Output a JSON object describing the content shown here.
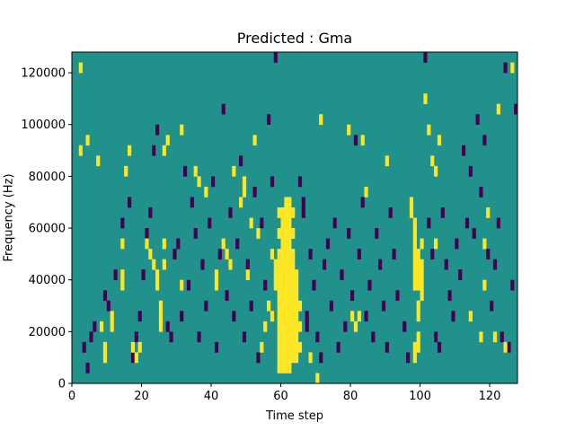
{
  "chart_data": {
    "type": "heatmap",
    "title": "Predicted : Gma",
    "xlabel": "Time step",
    "ylabel": "Frequency (Hz)",
    "xlim": [
      0,
      128
    ],
    "ylim": [
      0,
      128000
    ],
    "x_ticks": [
      "0",
      "20",
      "40",
      "60",
      "80",
      "100",
      "120"
    ],
    "y_ticks": [
      "0",
      "20000",
      "40000",
      "60000",
      "80000",
      "100000",
      "120000"
    ],
    "grid": false,
    "legend": "none",
    "colors": {
      "background": "#21918c",
      "high": "#fde725",
      "low": "#440154"
    },
    "value_levels": [
      "low",
      "medium",
      "high"
    ],
    "cell_size": {
      "time_steps": 1,
      "frequency_hz": 4000
    },
    "high_cells": [
      [
        2,
        120000
      ],
      [
        2,
        88000
      ],
      [
        4,
        92000
      ],
      [
        7,
        84000
      ],
      [
        8,
        20000
      ],
      [
        9,
        12000
      ],
      [
        9,
        8000
      ],
      [
        11,
        24000
      ],
      [
        11,
        20000
      ],
      [
        14,
        40000
      ],
      [
        14,
        52000
      ],
      [
        14,
        36000
      ],
      [
        15,
        80000
      ],
      [
        16,
        88000
      ],
      [
        17,
        12000
      ],
      [
        18,
        8000
      ],
      [
        19,
        12000
      ],
      [
        21,
        52000
      ],
      [
        22,
        48000
      ],
      [
        23,
        44000
      ],
      [
        24,
        40000
      ],
      [
        24,
        36000
      ],
      [
        25,
        28000
      ],
      [
        25,
        24000
      ],
      [
        25,
        20000
      ],
      [
        26,
        44000
      ],
      [
        26,
        52000
      ],
      [
        26,
        88000
      ],
      [
        27,
        92000
      ],
      [
        31,
        96000
      ],
      [
        31,
        36000
      ],
      [
        35,
        80000
      ],
      [
        36,
        76000
      ],
      [
        38,
        72000
      ],
      [
        41,
        36000
      ],
      [
        41,
        40000
      ],
      [
        43,
        52000
      ],
      [
        44,
        48000
      ],
      [
        45,
        44000
      ],
      [
        46,
        80000
      ],
      [
        48,
        68000
      ],
      [
        49,
        76000
      ],
      [
        49,
        72000
      ],
      [
        50,
        40000
      ],
      [
        51,
        60000
      ],
      [
        52,
        92000
      ],
      [
        53,
        56000
      ],
      [
        54,
        12000
      ],
      [
        55,
        20000
      ],
      [
        56,
        28000
      ],
      [
        57,
        48000
      ],
      [
        57,
        24000
      ],
      [
        58,
        44000
      ],
      [
        58,
        40000
      ],
      [
        58,
        36000
      ],
      [
        59,
        64000
      ],
      [
        59,
        56000
      ],
      [
        59,
        48000
      ],
      [
        59,
        44000
      ],
      [
        59,
        40000
      ],
      [
        59,
        36000
      ],
      [
        59,
        32000
      ],
      [
        59,
        28000
      ],
      [
        59,
        24000
      ],
      [
        59,
        20000
      ],
      [
        59,
        16000
      ],
      [
        59,
        12000
      ],
      [
        59,
        8000
      ],
      [
        59,
        4000
      ],
      [
        60,
        64000
      ],
      [
        60,
        60000
      ],
      [
        60,
        56000
      ],
      [
        60,
        52000
      ],
      [
        60,
        48000
      ],
      [
        60,
        44000
      ],
      [
        60,
        40000
      ],
      [
        60,
        36000
      ],
      [
        60,
        32000
      ],
      [
        60,
        28000
      ],
      [
        60,
        24000
      ],
      [
        60,
        20000
      ],
      [
        60,
        16000
      ],
      [
        60,
        12000
      ],
      [
        60,
        8000
      ],
      [
        60,
        4000
      ],
      [
        61,
        68000
      ],
      [
        61,
        64000
      ],
      [
        61,
        60000
      ],
      [
        61,
        56000
      ],
      [
        61,
        52000
      ],
      [
        61,
        48000
      ],
      [
        61,
        44000
      ],
      [
        61,
        40000
      ],
      [
        61,
        36000
      ],
      [
        61,
        32000
      ],
      [
        61,
        28000
      ],
      [
        61,
        24000
      ],
      [
        61,
        20000
      ],
      [
        61,
        16000
      ],
      [
        61,
        12000
      ],
      [
        61,
        8000
      ],
      [
        61,
        4000
      ],
      [
        62,
        68000
      ],
      [
        62,
        64000
      ],
      [
        62,
        60000
      ],
      [
        62,
        56000
      ],
      [
        62,
        52000
      ],
      [
        62,
        48000
      ],
      [
        62,
        44000
      ],
      [
        62,
        40000
      ],
      [
        62,
        36000
      ],
      [
        62,
        32000
      ],
      [
        62,
        28000
      ],
      [
        62,
        24000
      ],
      [
        62,
        20000
      ],
      [
        62,
        16000
      ],
      [
        62,
        12000
      ],
      [
        62,
        8000
      ],
      [
        62,
        4000
      ],
      [
        63,
        64000
      ],
      [
        63,
        56000
      ],
      [
        63,
        48000
      ],
      [
        63,
        44000
      ],
      [
        63,
        40000
      ],
      [
        63,
        36000
      ],
      [
        63,
        32000
      ],
      [
        63,
        28000
      ],
      [
        63,
        24000
      ],
      [
        63,
        20000
      ],
      [
        63,
        16000
      ],
      [
        63,
        12000
      ],
      [
        63,
        8000
      ],
      [
        64,
        40000
      ],
      [
        64,
        36000
      ],
      [
        64,
        32000
      ],
      [
        64,
        28000
      ],
      [
        64,
        24000
      ],
      [
        64,
        20000
      ],
      [
        64,
        16000
      ],
      [
        64,
        12000
      ],
      [
        64,
        8000
      ],
      [
        65,
        28000
      ],
      [
        65,
        20000
      ],
      [
        65,
        12000
      ],
      [
        68,
        8000
      ],
      [
        70,
        0
      ],
      [
        71,
        100000
      ],
      [
        79,
        96000
      ],
      [
        80,
        24000
      ],
      [
        81,
        20000
      ],
      [
        82,
        24000
      ],
      [
        83,
        92000
      ],
      [
        84,
        72000
      ],
      [
        90,
        84000
      ],
      [
        97,
        68000
      ],
      [
        97,
        64000
      ],
      [
        98,
        60000
      ],
      [
        98,
        56000
      ],
      [
        98,
        52000
      ],
      [
        98,
        48000
      ],
      [
        98,
        44000
      ],
      [
        98,
        40000
      ],
      [
        98,
        36000
      ],
      [
        98,
        12000
      ],
      [
        98,
        8000
      ],
      [
        99,
        48000
      ],
      [
        99,
        44000
      ],
      [
        99,
        40000
      ],
      [
        99,
        36000
      ],
      [
        99,
        28000
      ],
      [
        99,
        24000
      ],
      [
        99,
        16000
      ],
      [
        99,
        12000
      ],
      [
        100,
        52000
      ],
      [
        100,
        44000
      ],
      [
        100,
        40000
      ],
      [
        100,
        36000
      ],
      [
        100,
        32000
      ],
      [
        101,
        108000
      ],
      [
        102,
        96000
      ],
      [
        103,
        84000
      ],
      [
        104,
        80000
      ],
      [
        104,
        52000
      ],
      [
        105,
        92000
      ],
      [
        114,
        24000
      ],
      [
        117,
        16000
      ],
      [
        118,
        36000
      ],
      [
        118,
        52000
      ],
      [
        119,
        64000
      ],
      [
        121,
        16000
      ],
      [
        122,
        104000
      ],
      [
        124,
        12000
      ],
      [
        126,
        120000
      ]
    ],
    "low_cells": [
      [
        3,
        12000
      ],
      [
        4,
        4000
      ],
      [
        5,
        16000
      ],
      [
        6,
        20000
      ],
      [
        9,
        32000
      ],
      [
        10,
        28000
      ],
      [
        12,
        40000
      ],
      [
        14,
        60000
      ],
      [
        16,
        68000
      ],
      [
        17,
        8000
      ],
      [
        18,
        16000
      ],
      [
        19,
        24000
      ],
      [
        20,
        40000
      ],
      [
        21,
        56000
      ],
      [
        22,
        64000
      ],
      [
        23,
        88000
      ],
      [
        24,
        96000
      ],
      [
        27,
        20000
      ],
      [
        28,
        16000
      ],
      [
        29,
        48000
      ],
      [
        30,
        52000
      ],
      [
        31,
        24000
      ],
      [
        32,
        80000
      ],
      [
        33,
        36000
      ],
      [
        34,
        68000
      ],
      [
        35,
        56000
      ],
      [
        36,
        16000
      ],
      [
        37,
        44000
      ],
      [
        38,
        28000
      ],
      [
        39,
        60000
      ],
      [
        40,
        76000
      ],
      [
        41,
        12000
      ],
      [
        42,
        48000
      ],
      [
        43,
        104000
      ],
      [
        44,
        32000
      ],
      [
        45,
        64000
      ],
      [
        46,
        24000
      ],
      [
        47,
        52000
      ],
      [
        48,
        84000
      ],
      [
        49,
        16000
      ],
      [
        50,
        44000
      ],
      [
        51,
        28000
      ],
      [
        52,
        72000
      ],
      [
        53,
        8000
      ],
      [
        54,
        60000
      ],
      [
        55,
        36000
      ],
      [
        56,
        100000
      ],
      [
        57,
        76000
      ],
      [
        58,
        124000
      ],
      [
        65,
        76000
      ],
      [
        66,
        68000
      ],
      [
        66,
        64000
      ],
      [
        67,
        24000
      ],
      [
        67,
        20000
      ],
      [
        68,
        48000
      ],
      [
        69,
        36000
      ],
      [
        70,
        16000
      ],
      [
        71,
        8000
      ],
      [
        72,
        44000
      ],
      [
        73,
        52000
      ],
      [
        74,
        28000
      ],
      [
        75,
        60000
      ],
      [
        76,
        12000
      ],
      [
        77,
        40000
      ],
      [
        78,
        20000
      ],
      [
        79,
        56000
      ],
      [
        80,
        32000
      ],
      [
        81,
        92000
      ],
      [
        82,
        48000
      ],
      [
        83,
        68000
      ],
      [
        84,
        24000
      ],
      [
        85,
        36000
      ],
      [
        86,
        16000
      ],
      [
        87,
        56000
      ],
      [
        88,
        44000
      ],
      [
        89,
        28000
      ],
      [
        90,
        12000
      ],
      [
        91,
        64000
      ],
      [
        92,
        48000
      ],
      [
        93,
        32000
      ],
      [
        95,
        20000
      ],
      [
        96,
        8000
      ],
      [
        101,
        124000
      ],
      [
        102,
        60000
      ],
      [
        103,
        48000
      ],
      [
        104,
        16000
      ],
      [
        105,
        12000
      ],
      [
        106,
        64000
      ],
      [
        107,
        44000
      ],
      [
        108,
        32000
      ],
      [
        109,
        24000
      ],
      [
        110,
        52000
      ],
      [
        111,
        40000
      ],
      [
        112,
        88000
      ],
      [
        113,
        60000
      ],
      [
        114,
        80000
      ],
      [
        115,
        56000
      ],
      [
        116,
        100000
      ],
      [
        117,
        72000
      ],
      [
        118,
        92000
      ],
      [
        119,
        48000
      ],
      [
        120,
        28000
      ],
      [
        121,
        44000
      ],
      [
        122,
        60000
      ],
      [
        123,
        16000
      ],
      [
        124,
        120000
      ],
      [
        125,
        12000
      ],
      [
        126,
        36000
      ],
      [
        127,
        104000
      ]
    ]
  }
}
